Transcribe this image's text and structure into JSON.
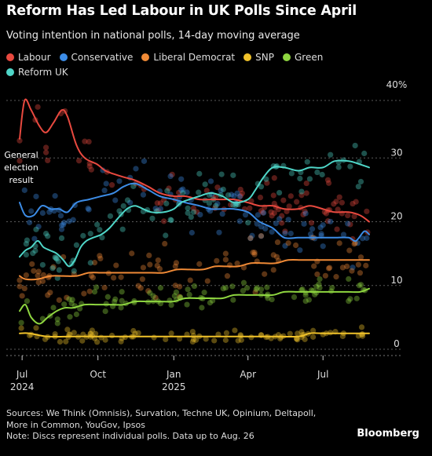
{
  "chart_data": {
    "type": "line",
    "title": "Reform Has Led Labour in UK Polls Since April",
    "subtitle": "Voting intention in national polls, 14-day moving average",
    "y_axis": {
      "range": [
        0,
        40
      ],
      "ticks": [
        0,
        10,
        20,
        30
      ],
      "top_label": "40%",
      "position": "right",
      "grid": true
    },
    "x_axis": {
      "range": [
        "2024-06-28",
        "2025-08-26"
      ],
      "ticks": [
        {
          "date": "2024-07-01",
          "label": "Jul",
          "year": "2024"
        },
        {
          "date": "2024-10-01",
          "label": "Oct",
          "year": ""
        },
        {
          "date": "2025-01-01",
          "label": "Jan",
          "year": "2025"
        },
        {
          "date": "2025-04-01",
          "label": "Apr",
          "year": ""
        },
        {
          "date": "2025-07-01",
          "label": "Jul",
          "year": ""
        }
      ]
    },
    "legend_placement": "top",
    "series": [
      {
        "name": "Labour",
        "color": "#e8493f",
        "points": [
          [
            "2024-06-28",
            33
          ],
          [
            "2024-07-04",
            39
          ],
          [
            "2024-07-12",
            37.5
          ],
          [
            "2024-07-22",
            35
          ],
          [
            "2024-07-30",
            34
          ],
          [
            "2024-08-08",
            35.5
          ],
          [
            "2024-08-18",
            37.5
          ],
          [
            "2024-08-25",
            36.5
          ],
          [
            "2024-09-05",
            32
          ],
          [
            "2024-09-15",
            30
          ],
          [
            "2024-09-30",
            29
          ],
          [
            "2024-10-10",
            28
          ],
          [
            "2024-10-20",
            27.5
          ],
          [
            "2024-11-01",
            27
          ],
          [
            "2024-11-15",
            26.5
          ],
          [
            "2024-12-01",
            25.5
          ],
          [
            "2024-12-15",
            24.5
          ],
          [
            "2025-01-01",
            24
          ],
          [
            "2025-01-15",
            24
          ],
          [
            "2025-02-01",
            23.5
          ],
          [
            "2025-02-15",
            23.5
          ],
          [
            "2025-03-01",
            23.5
          ],
          [
            "2025-03-15",
            23.5
          ],
          [
            "2025-04-01",
            23
          ],
          [
            "2025-04-15",
            22.5
          ],
          [
            "2025-05-01",
            22.5
          ],
          [
            "2025-05-15",
            22
          ],
          [
            "2025-06-01",
            22
          ],
          [
            "2025-06-15",
            22.5
          ],
          [
            "2025-07-01",
            22
          ],
          [
            "2025-07-15",
            21.5
          ],
          [
            "2025-08-01",
            21.5
          ],
          [
            "2025-08-15",
            21
          ],
          [
            "2025-08-26",
            20
          ]
        ]
      },
      {
        "name": "Conservative",
        "color": "#3c8ce6",
        "points": [
          [
            "2024-06-28",
            23
          ],
          [
            "2024-07-05",
            21
          ],
          [
            "2024-07-15",
            21
          ],
          [
            "2024-07-25",
            22.5
          ],
          [
            "2024-08-05",
            22
          ],
          [
            "2024-08-15",
            22
          ],
          [
            "2024-08-25",
            21.5
          ],
          [
            "2024-09-05",
            23
          ],
          [
            "2024-09-20",
            23.5
          ],
          [
            "2024-10-05",
            24
          ],
          [
            "2024-10-20",
            24.5
          ],
          [
            "2024-11-01",
            25.5
          ],
          [
            "2024-11-15",
            26
          ],
          [
            "2024-12-01",
            25
          ],
          [
            "2024-12-15",
            24
          ],
          [
            "2025-01-01",
            23.5
          ],
          [
            "2025-01-15",
            23
          ],
          [
            "2025-02-01",
            22.5
          ],
          [
            "2025-02-15",
            22
          ],
          [
            "2025-03-01",
            22
          ],
          [
            "2025-03-15",
            22
          ],
          [
            "2025-04-01",
            21.5
          ],
          [
            "2025-04-15",
            20
          ],
          [
            "2025-05-01",
            19
          ],
          [
            "2025-05-15",
            17.5
          ],
          [
            "2025-06-01",
            17.5
          ],
          [
            "2025-06-15",
            17.5
          ],
          [
            "2025-07-01",
            17.5
          ],
          [
            "2025-07-15",
            17.5
          ],
          [
            "2025-08-01",
            17.5
          ],
          [
            "2025-08-10",
            17
          ],
          [
            "2025-08-20",
            18.5
          ],
          [
            "2025-08-26",
            18
          ]
        ]
      },
      {
        "name": "Liberal Democrat",
        "color": "#f08a36",
        "points": [
          [
            "2024-06-28",
            11.5
          ],
          [
            "2024-07-05",
            11
          ],
          [
            "2024-07-20",
            11
          ],
          [
            "2024-08-05",
            11.5
          ],
          [
            "2024-08-20",
            11.5
          ],
          [
            "2024-09-05",
            11.5
          ],
          [
            "2024-09-20",
            12
          ],
          [
            "2024-10-05",
            12
          ],
          [
            "2024-10-20",
            12
          ],
          [
            "2024-11-05",
            12
          ],
          [
            "2024-11-20",
            12
          ],
          [
            "2024-12-05",
            12
          ],
          [
            "2024-12-20",
            12
          ],
          [
            "2025-01-05",
            12.5
          ],
          [
            "2025-01-20",
            12.5
          ],
          [
            "2025-02-05",
            12.5
          ],
          [
            "2025-02-20",
            13
          ],
          [
            "2025-03-05",
            13
          ],
          [
            "2025-03-20",
            13
          ],
          [
            "2025-04-05",
            13.5
          ],
          [
            "2025-04-20",
            13.5
          ],
          [
            "2025-05-05",
            13.5
          ],
          [
            "2025-05-20",
            14
          ],
          [
            "2025-06-05",
            14
          ],
          [
            "2025-06-20",
            14
          ],
          [
            "2025-07-05",
            14
          ],
          [
            "2025-07-20",
            14
          ],
          [
            "2025-08-05",
            14
          ],
          [
            "2025-08-20",
            14
          ],
          [
            "2025-08-26",
            14
          ]
        ]
      },
      {
        "name": "SNP",
        "color": "#f0c22a",
        "points": [
          [
            "2024-06-28",
            2.5
          ],
          [
            "2024-07-10",
            2.5
          ],
          [
            "2024-08-01",
            2
          ],
          [
            "2024-09-01",
            2
          ],
          [
            "2024-10-01",
            2
          ],
          [
            "2024-11-01",
            2
          ],
          [
            "2024-12-01",
            2
          ],
          [
            "2025-01-01",
            2
          ],
          [
            "2025-02-01",
            2
          ],
          [
            "2025-03-01",
            2
          ],
          [
            "2025-04-01",
            2
          ],
          [
            "2025-05-01",
            2
          ],
          [
            "2025-06-01",
            2
          ],
          [
            "2025-06-15",
            2.5
          ],
          [
            "2025-07-01",
            2.5
          ],
          [
            "2025-08-01",
            2.5
          ],
          [
            "2025-08-26",
            2.5
          ]
        ]
      },
      {
        "name": "Green",
        "color": "#8fd640",
        "points": [
          [
            "2024-06-28",
            6
          ],
          [
            "2024-07-05",
            7
          ],
          [
            "2024-07-12",
            5
          ],
          [
            "2024-07-22",
            4
          ],
          [
            "2024-08-01",
            5
          ],
          [
            "2024-08-12",
            6
          ],
          [
            "2024-08-22",
            6.5
          ],
          [
            "2024-09-01",
            6.5
          ],
          [
            "2024-09-15",
            7
          ],
          [
            "2024-10-01",
            7
          ],
          [
            "2024-10-15",
            7
          ],
          [
            "2024-11-01",
            7
          ],
          [
            "2024-11-15",
            7.5
          ],
          [
            "2024-12-01",
            7.5
          ],
          [
            "2024-12-15",
            7.5
          ],
          [
            "2025-01-01",
            7.5
          ],
          [
            "2025-01-15",
            8
          ],
          [
            "2025-02-01",
            8
          ],
          [
            "2025-02-15",
            8
          ],
          [
            "2025-03-01",
            8
          ],
          [
            "2025-03-15",
            8.5
          ],
          [
            "2025-04-01",
            8.5
          ],
          [
            "2025-04-15",
            8.5
          ],
          [
            "2025-05-01",
            8.5
          ],
          [
            "2025-05-15",
            9
          ],
          [
            "2025-06-01",
            9
          ],
          [
            "2025-06-15",
            9
          ],
          [
            "2025-07-01",
            9
          ],
          [
            "2025-07-15",
            9
          ],
          [
            "2025-08-01",
            9
          ],
          [
            "2025-08-15",
            9
          ],
          [
            "2025-08-26",
            9.5
          ]
        ]
      },
      {
        "name": "Reform UK",
        "color": "#4fd6c8",
        "points": [
          [
            "2024-06-28",
            14.5
          ],
          [
            "2024-07-05",
            15.5
          ],
          [
            "2024-07-12",
            16
          ],
          [
            "2024-07-20",
            17
          ],
          [
            "2024-07-27",
            16
          ],
          [
            "2024-08-04",
            15.5
          ],
          [
            "2024-08-12",
            15
          ],
          [
            "2024-08-20",
            14
          ],
          [
            "2024-08-27",
            13
          ],
          [
            "2024-09-03",
            14
          ],
          [
            "2024-09-10",
            16
          ],
          [
            "2024-09-17",
            17
          ],
          [
            "2024-09-25",
            17.5
          ],
          [
            "2024-10-05",
            18
          ],
          [
            "2024-10-15",
            19
          ],
          [
            "2024-10-25",
            20.5
          ],
          [
            "2024-11-05",
            22
          ],
          [
            "2024-11-15",
            22.5
          ],
          [
            "2024-11-25",
            22
          ],
          [
            "2024-12-05",
            21.5
          ],
          [
            "2024-12-20",
            21.5
          ],
          [
            "2025-01-01",
            22
          ],
          [
            "2025-01-10",
            23
          ],
          [
            "2025-01-20",
            23.5
          ],
          [
            "2025-02-01",
            24
          ],
          [
            "2025-02-15",
            24.5
          ],
          [
            "2025-03-01",
            24
          ],
          [
            "2025-03-15",
            23
          ],
          [
            "2025-04-01",
            23.5
          ],
          [
            "2025-04-10",
            25
          ],
          [
            "2025-04-20",
            27
          ],
          [
            "2025-05-01",
            28.5
          ],
          [
            "2025-05-15",
            28.5
          ],
          [
            "2025-06-01",
            28
          ],
          [
            "2025-06-15",
            28.5
          ],
          [
            "2025-07-01",
            28.5
          ],
          [
            "2025-07-15",
            29.5
          ],
          [
            "2025-08-01",
            29.5
          ],
          [
            "2025-08-15",
            29
          ],
          [
            "2025-08-26",
            28.5
          ]
        ]
      }
    ]
  },
  "annotation": {
    "line1": "General",
    "line2": "election",
    "line3": "result"
  },
  "footer": {
    "line1": "Sources: We Think (Omnisis), Survation, Techne UK, Opinium, Deltapoll,",
    "line2": "More in Common, YouGov, Ipsos",
    "line3": "Note: Discs represent individual polls. Data up to Aug. 26"
  },
  "brand": "Bloomberg"
}
